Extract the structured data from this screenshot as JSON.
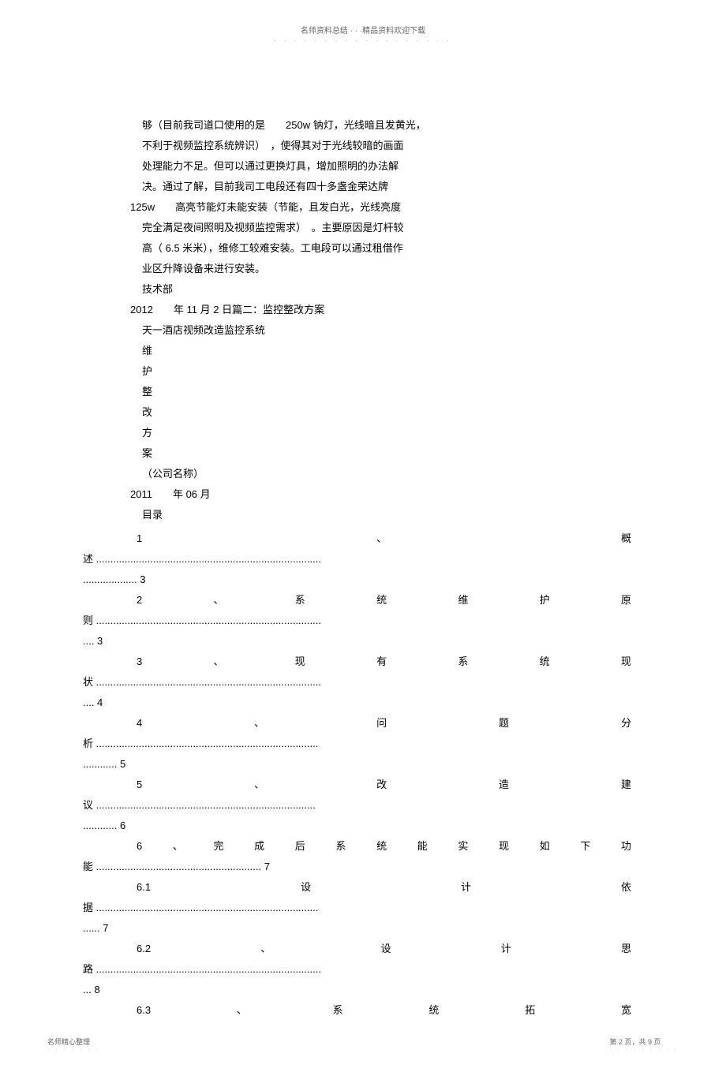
{
  "header": {
    "text": "名师资料总结 · · ·精品资料欢迎下载"
  },
  "body": {
    "lines": [
      "够（目前我司道口使用的是　　250w 钠灯，光线暗且发黄光，",
      "不利于视频监控系统辨识）　，使得其对于光线较暗的画面",
      "处理能力不足。但可以通过更换灯具，增加照明的办法解",
      "决。通过了解，目前我司工电段还有四十多盏金荣达牌"
    ],
    "line_125w": "125w　　高亮节能灯未能安装（节能，且发白光，光线亮度",
    "lines2": [
      "完全满足夜间照明及视频监控需求）　。主要原因是灯杆较",
      "高（ 6.5 米米），维修工较难安装。工电段可以通过租借作",
      "业区升降设备来进行安装。",
      "技术部"
    ],
    "line_2012": "2012　　年 11 月 2 日篇二：监控整改方案",
    "line_tianyi": "天一酒店视频改造监控系统",
    "vertical": [
      "维",
      "护",
      "整",
      "改",
      "方",
      "案"
    ],
    "line_company": "（公司名称）",
    "line_2011": "2011　　年 06 月",
    "line_mulu": "目录"
  },
  "toc": [
    {
      "first_line_chars": [
        "1",
        "、",
        "概"
      ],
      "cont": "述 ...............................................................................",
      "page": "................... 3"
    },
    {
      "first_line_chars": [
        "2",
        "、",
        "系",
        "统",
        "维",
        "护",
        "原"
      ],
      "cont": "则 ...............................................................................",
      "page": ".... 3"
    },
    {
      "first_line_chars": [
        "3",
        "、",
        "现",
        "有",
        "系",
        "统",
        "现"
      ],
      "cont": "状 ...............................................................................",
      "page": ".... 4"
    },
    {
      "first_line_chars": [
        "4",
        "、",
        "问",
        "题",
        "分"
      ],
      "cont": "析 ..............................................................................",
      "page": "............ 5"
    },
    {
      "first_line_chars": [
        "5",
        "、",
        "改",
        "造",
        "建"
      ],
      "cont": "议 .............................................................................",
      "page": "............ 6"
    },
    {
      "first_line_chars": [
        "6",
        "、",
        "完",
        "成",
        "后",
        "系",
        "统",
        "能",
        "实",
        "现",
        "如",
        "下",
        "功"
      ],
      "cont": "能 .......................................................... 7",
      "page": ""
    },
    {
      "first_line_chars": [
        "6.1",
        "设",
        "计",
        "依"
      ],
      "cont": "据 ..............................................................................",
      "page": "...... 7"
    },
    {
      "first_line_chars": [
        "6.2",
        "、",
        "设",
        "计",
        "思"
      ],
      "cont": "路 ...............................................................................",
      "page": "... 8"
    },
    {
      "first_line_chars": [
        "6.3",
        "、",
        "系",
        "统",
        "拓",
        "宽"
      ],
      "cont": "",
      "page": ""
    }
  ],
  "footer": {
    "left": "名师精心整理",
    "right": "第 2 页，共 9 页"
  }
}
